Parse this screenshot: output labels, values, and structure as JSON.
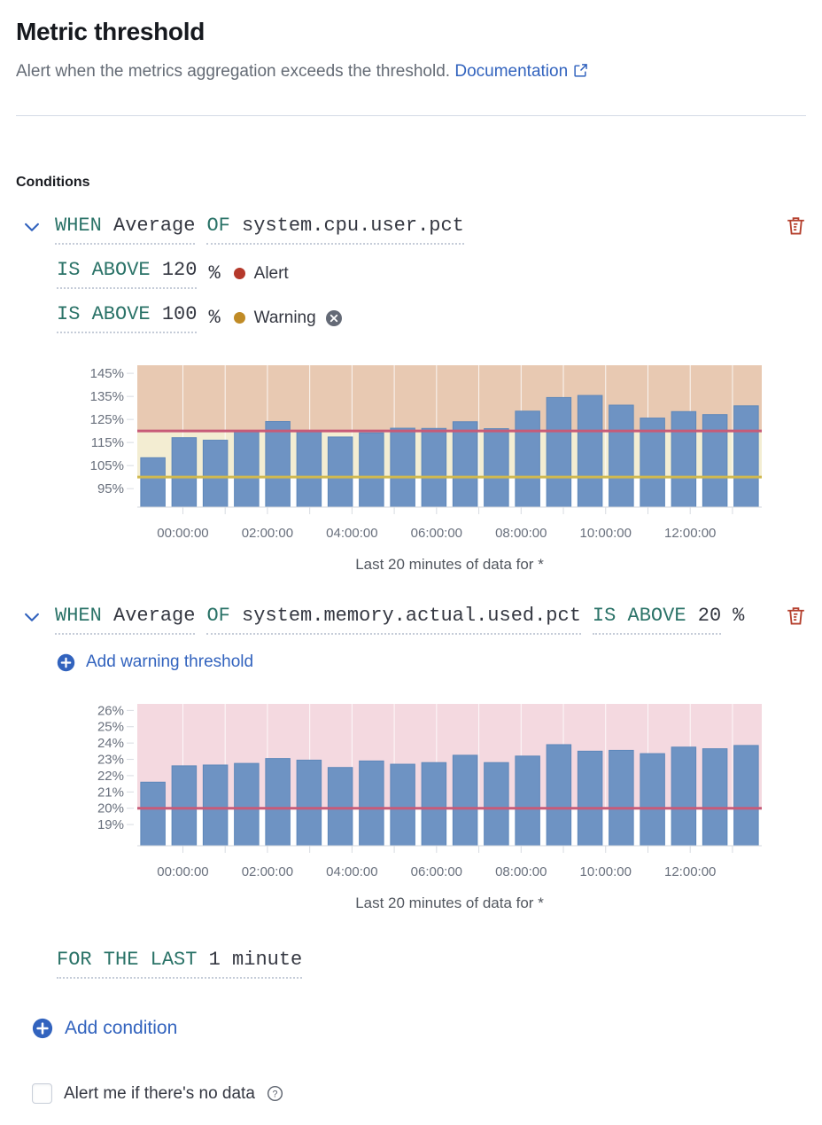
{
  "header": {
    "title": "Metric threshold",
    "subtitle": "Alert when the metrics aggregation exceeds the threshold.",
    "doc_link_label": "Documentation"
  },
  "conditions_label": "Conditions",
  "colors": {
    "link_blue": "#3263BE",
    "expression_keyword_teal": "#2b7368",
    "danger_red": "#B5402E",
    "alert_dot": "#B5392B",
    "warning_dot": "#C08B26",
    "bar_blue": "#6E93C3"
  },
  "conditions": [
    {
      "when_label": "WHEN",
      "aggregation": "Average",
      "of_label": "OF",
      "metric": "system.cpu.user.pct",
      "thresholds": [
        {
          "operator": "IS ABOVE",
          "value": "120",
          "unit": "%",
          "badge_label": "Alert",
          "dot_color": "#B5392B",
          "removable": false
        },
        {
          "operator": "IS ABOVE",
          "value": "100",
          "unit": "%",
          "badge_label": "Warning",
          "dot_color": "#C08B26",
          "removable": true
        }
      ]
    },
    {
      "when_label": "WHEN",
      "aggregation": "Average",
      "of_label": "OF",
      "metric": "system.memory.actual.used.pct",
      "operator": "IS ABOVE",
      "value": "20",
      "unit": "%",
      "add_warning_label": "Add warning threshold"
    }
  ],
  "for_the_last": {
    "label": "FOR THE LAST",
    "value": "1 minute"
  },
  "add_condition_label": "Add condition",
  "no_data_label": "Alert me if there's no data",
  "chart_data": [
    {
      "type": "bar",
      "caption": "Last 20 minutes of data for *",
      "x_tick_labels": [
        "00:00:00",
        "02:00:00",
        "04:00:00",
        "06:00:00",
        "08:00:00",
        "10:00:00",
        "12:00:00"
      ],
      "values": [
        108.4,
        117.1,
        116.0,
        119.7,
        124.1,
        119.7,
        117.4,
        119.2,
        121.2,
        121.1,
        124.0,
        121.0,
        128.6,
        134.5,
        135.4,
        131.2,
        125.6,
        128.4,
        127.1,
        130.9
      ],
      "ylim": [
        87,
        148.5
      ],
      "yticks": [
        95,
        105,
        115,
        125,
        135,
        145
      ],
      "ytick_suffix": "%",
      "bar_color": "#6E93C3",
      "bar_border_color": "#5d87ba",
      "grid": "vertical-white",
      "legend": "none",
      "tick_count": 14,
      "tick_start_frac": 0.073,
      "tick_step_frac": 0.0677,
      "thresholds": [
        {
          "label": "alert",
          "value": 120,
          "line_color": "#C75B78",
          "zone_color": "#E8C9B2"
        },
        {
          "label": "warning",
          "value": 100,
          "line_color": "#D0B94F",
          "zone_color": "#F3EDD2"
        }
      ]
    },
    {
      "type": "bar",
      "caption": "Last 20 minutes of data for *",
      "x_tick_labels": [
        "00:00:00",
        "02:00:00",
        "04:00:00",
        "06:00:00",
        "08:00:00",
        "10:00:00",
        "12:00:00"
      ],
      "values": [
        21.6,
        22.6,
        22.65,
        22.75,
        23.05,
        22.95,
        22.5,
        22.9,
        22.7,
        22.8,
        23.25,
        22.8,
        23.2,
        23.9,
        23.5,
        23.55,
        23.35,
        23.75,
        23.65,
        23.85
      ],
      "ylim": [
        17.7,
        26.4
      ],
      "yticks": [
        19,
        20,
        21,
        22,
        23,
        24,
        25,
        26
      ],
      "ytick_suffix": "%",
      "bar_color": "#6E93C3",
      "bar_border_color": "#5d87ba",
      "grid": "vertical-white",
      "legend": "none",
      "tick_count": 14,
      "tick_start_frac": 0.073,
      "tick_step_frac": 0.0677,
      "thresholds": [
        {
          "label": "alert",
          "value": 20,
          "line_color": "#C75B78",
          "zone_color": "#F4D9E0"
        }
      ]
    }
  ]
}
